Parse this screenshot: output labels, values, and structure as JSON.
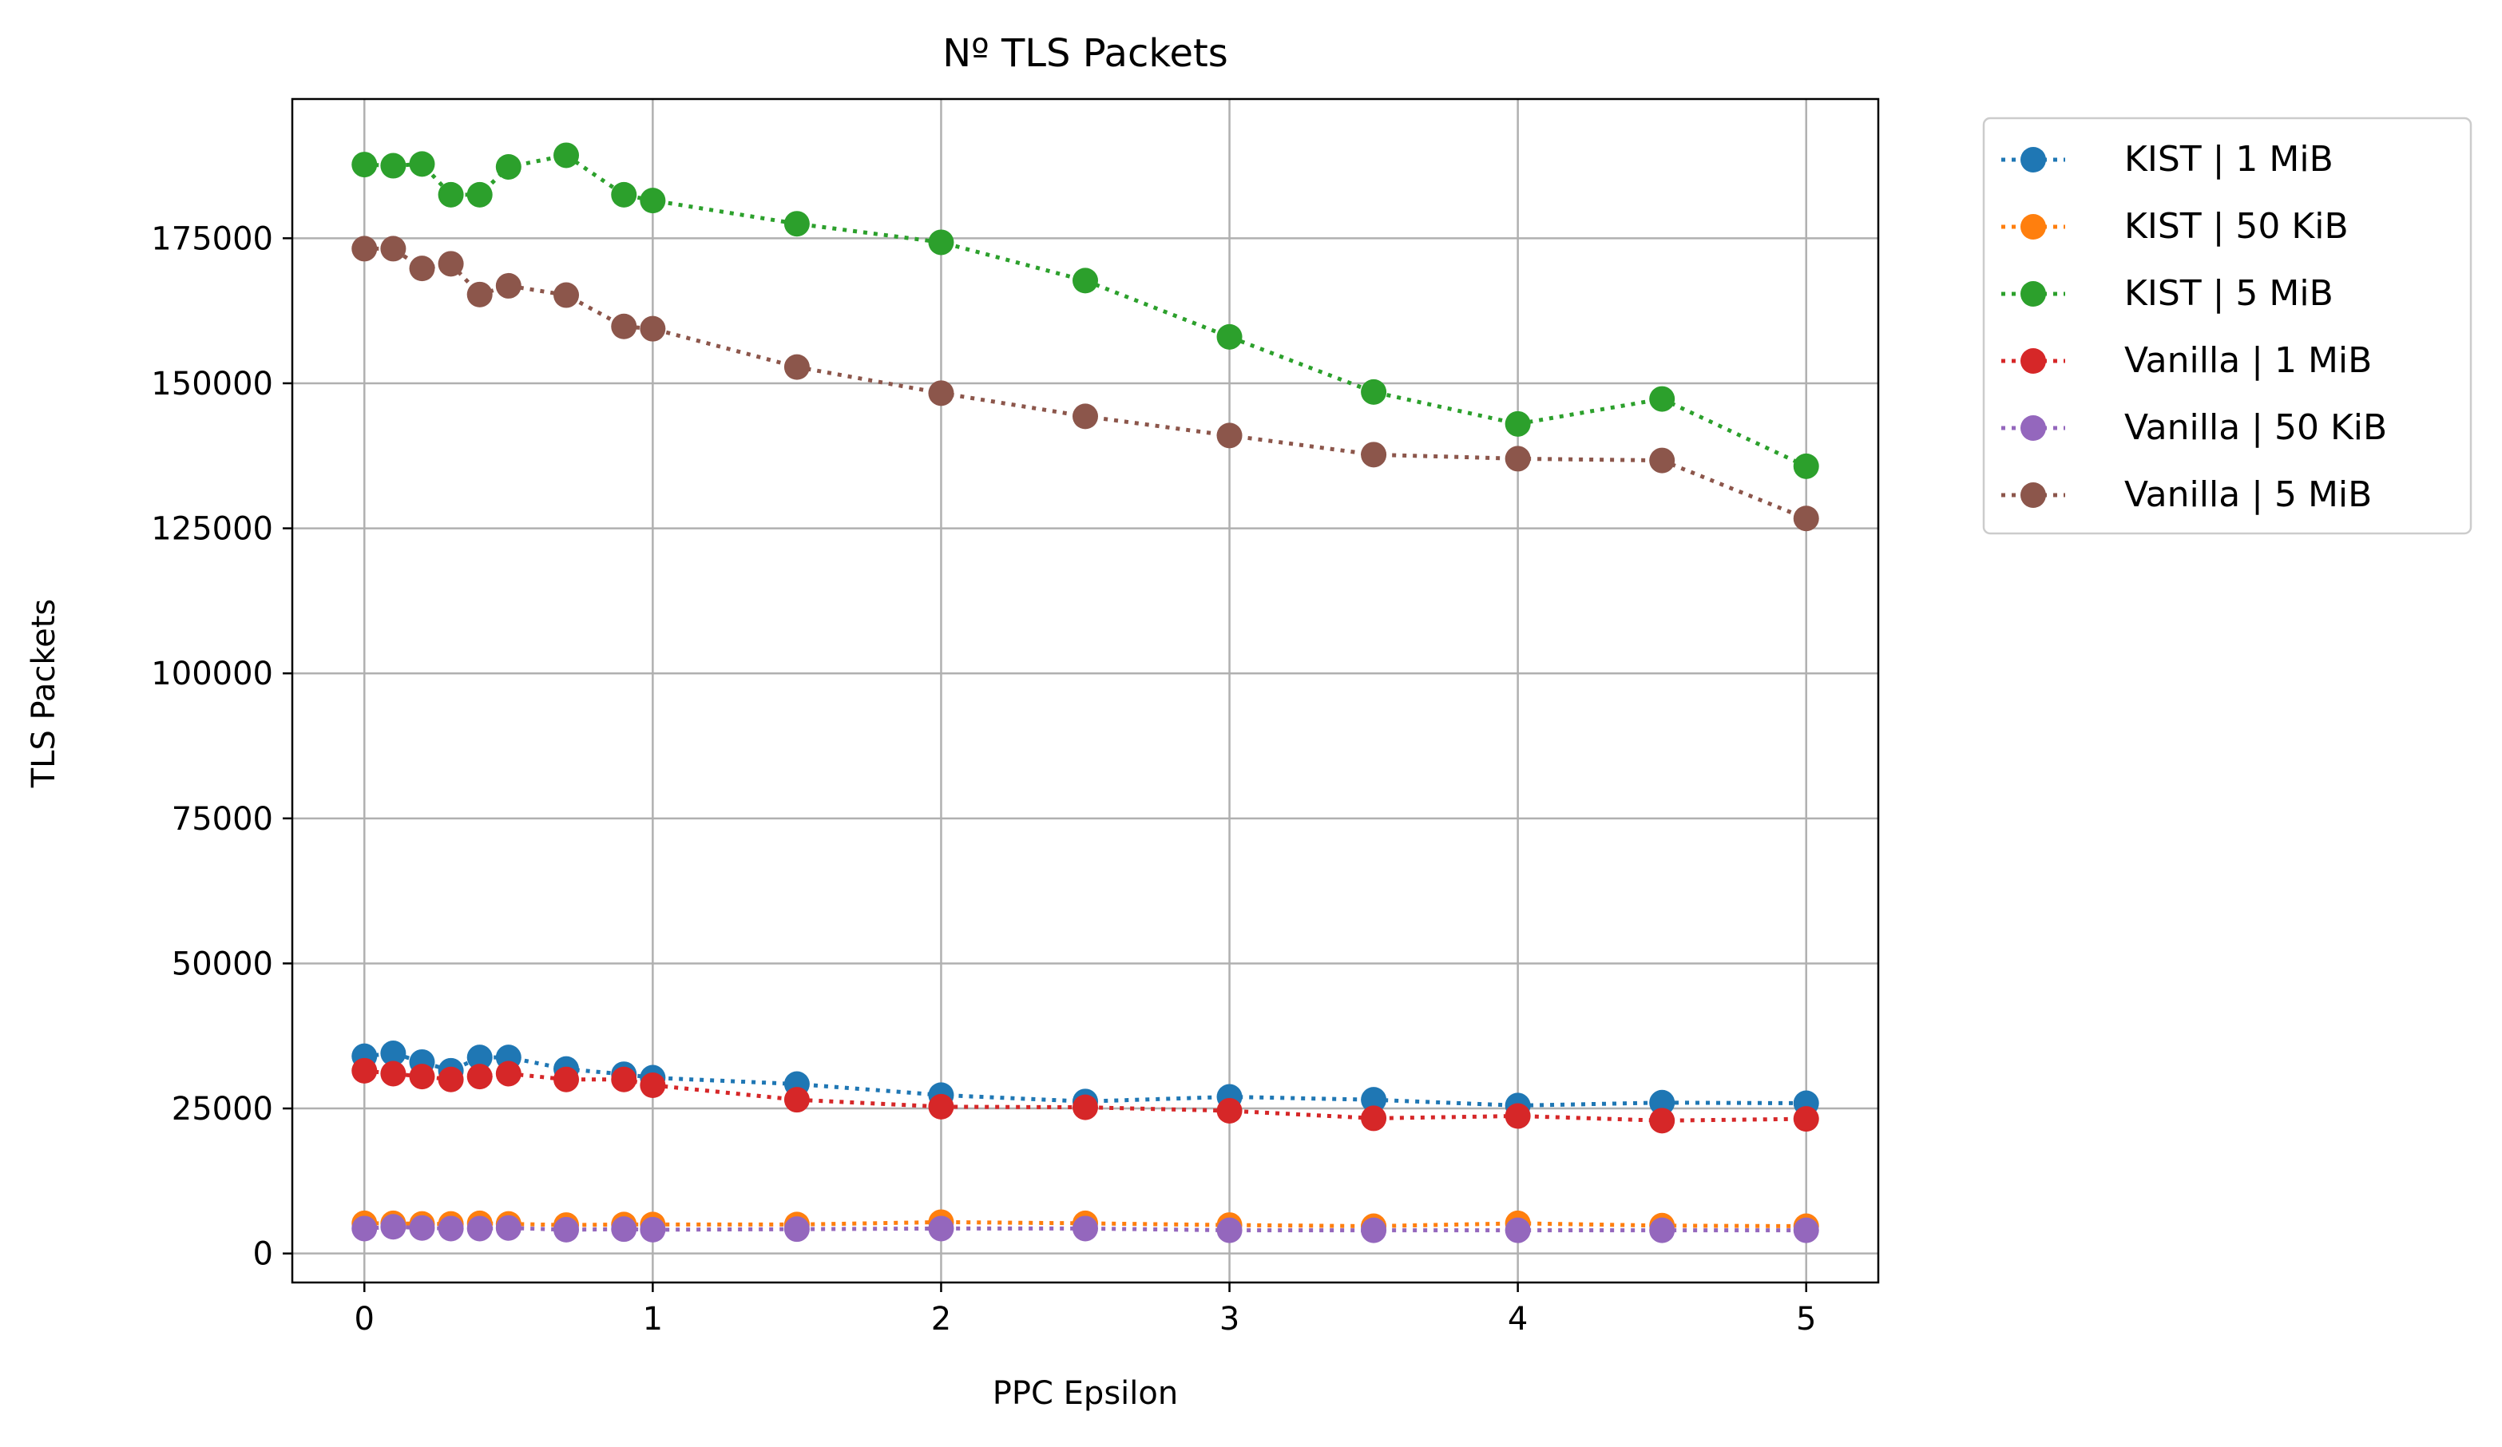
{
  "chart_data": {
    "type": "line",
    "title": "Nº TLS Packets",
    "xlabel": "PPC Epsilon",
    "ylabel": "TLS Packets",
    "xlim": [
      -0.25,
      5.25
    ],
    "ylim": [
      -5000,
      199000
    ],
    "xticks": [
      0,
      1,
      2,
      3,
      4,
      5
    ],
    "xtick_labels": [
      "0",
      "1",
      "2",
      "3",
      "4",
      "5"
    ],
    "yticks": [
      0,
      25000,
      50000,
      75000,
      100000,
      125000,
      150000,
      175000
    ],
    "ytick_labels": [
      "0",
      "25000",
      "50000",
      "75000",
      "100000",
      "125000",
      "150000",
      "175000"
    ],
    "grid": true,
    "legend_position": "outside-upper-right",
    "line_style": "dotted",
    "marker": "circle",
    "series": [
      {
        "name": "KIST | 1 MiB",
        "color": "#1f77b4",
        "x": [
          0,
          0.1,
          0.2,
          0.3,
          0.4,
          0.5,
          0.7,
          0.9,
          1.0,
          1.5,
          2.0,
          2.5,
          3.0,
          3.5,
          4.0,
          4.5,
          5.0
        ],
        "y": [
          34000,
          34500,
          33000,
          31500,
          33800,
          33800,
          31800,
          30900,
          30300,
          29200,
          27300,
          26200,
          27000,
          26500,
          25500,
          26000,
          25900
        ]
      },
      {
        "name": "KIST | 50 KiB",
        "color": "#ff7f0e",
        "x": [
          0,
          0.1,
          0.2,
          0.3,
          0.4,
          0.5,
          0.7,
          0.9,
          1.0,
          1.5,
          2.0,
          2.5,
          3.0,
          3.5,
          4.0,
          4.5,
          5.0
        ],
        "y": [
          5200,
          5200,
          5100,
          5100,
          5200,
          5100,
          4900,
          5000,
          5000,
          5000,
          5400,
          5200,
          4900,
          4700,
          5200,
          4800,
          4700
        ]
      },
      {
        "name": "KIST | 5 MiB",
        "color": "#2ca02c",
        "x": [
          0,
          0.1,
          0.2,
          0.3,
          0.4,
          0.5,
          0.7,
          0.9,
          1.0,
          1.5,
          2.0,
          2.5,
          3.0,
          3.5,
          4.0,
          4.5,
          5.0
        ],
        "y": [
          187700,
          187500,
          187800,
          182500,
          182500,
          187300,
          189300,
          182500,
          181500,
          177500,
          174300,
          167700,
          158000,
          148500,
          143000,
          147300,
          135700
        ]
      },
      {
        "name": "Vanilla | 1 MiB",
        "color": "#d62728",
        "x": [
          0,
          0.1,
          0.2,
          0.3,
          0.4,
          0.5,
          0.7,
          0.9,
          1.0,
          1.5,
          2.0,
          2.5,
          3.0,
          3.5,
          4.0,
          4.5,
          5.0
        ],
        "y": [
          31500,
          31000,
          30500,
          30000,
          30500,
          31000,
          30000,
          30000,
          29000,
          26500,
          25300,
          25200,
          24600,
          23300,
          23700,
          22900,
          23200
        ]
      },
      {
        "name": "Vanilla | 50 KiB",
        "color": "#9467bd",
        "x": [
          0,
          0.1,
          0.2,
          0.3,
          0.4,
          0.5,
          0.7,
          0.9,
          1.0,
          1.5,
          2.0,
          2.5,
          3.0,
          3.5,
          4.0,
          4.5,
          5.0
        ],
        "y": [
          4300,
          4600,
          4400,
          4300,
          4300,
          4400,
          4100,
          4200,
          4100,
          4200,
          4300,
          4300,
          4000,
          4000,
          4000,
          4000,
          4000
        ]
      },
      {
        "name": "Vanilla | 5 MiB",
        "color": "#8c564b",
        "x": [
          0,
          0.1,
          0.2,
          0.3,
          0.4,
          0.5,
          0.7,
          0.9,
          1.0,
          1.5,
          2.0,
          2.5,
          3.0,
          3.5,
          4.0,
          4.5,
          5.0
        ],
        "y": [
          173200,
          173200,
          169800,
          170600,
          165300,
          166800,
          165200,
          159800,
          159400,
          152800,
          148300,
          144300,
          141000,
          137700,
          137000,
          136700,
          126700
        ]
      }
    ]
  }
}
